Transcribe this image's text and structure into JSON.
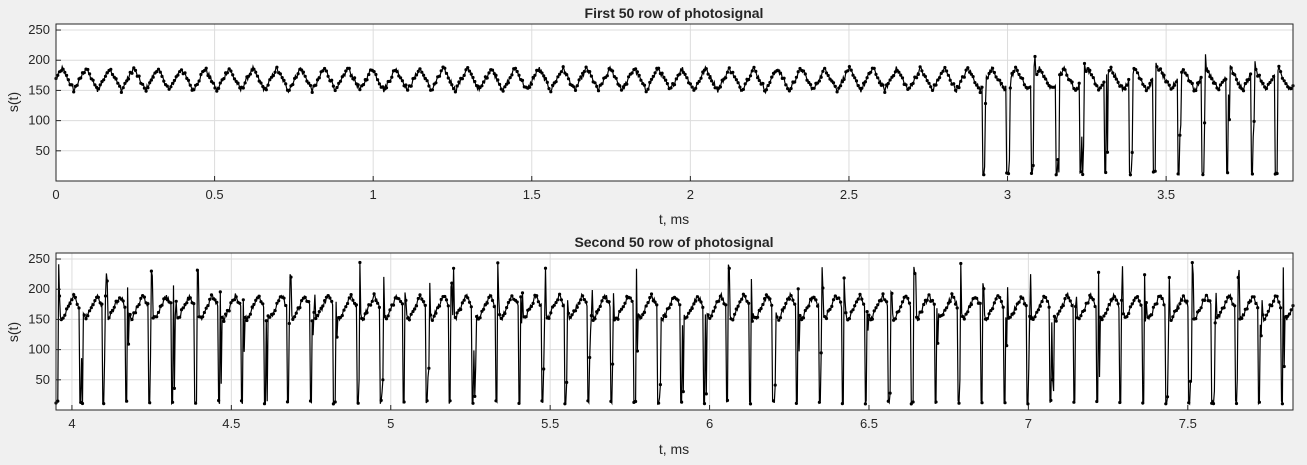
{
  "figure": {
    "background": "#f0f0f0",
    "axes_background": "#ffffff",
    "trace_color": "#000000",
    "grid_color": "#dcdcdc"
  },
  "chart_data": [
    {
      "type": "line",
      "title": "First 50 row of photosignal",
      "xlabel": "t, ms",
      "ylabel": "s(t)",
      "xlim": [
        0,
        3.9
      ],
      "ylim": [
        0,
        260
      ],
      "xticks": [
        "0",
        "0.5",
        "1",
        "1.5",
        "2",
        "2.5",
        "3",
        "3.5"
      ],
      "yticks": [
        "50",
        "100",
        "150",
        "200",
        "250"
      ],
      "grid": true,
      "marker": "dot",
      "series": [
        {
          "baseline_mean": 168,
          "oscillation_min": 150,
          "oscillation_max": 187,
          "cycles_per_ms": 13.3,
          "dropouts_from_ms": 2.92,
          "dropout_min": 10,
          "dropout_period_ms": 0.077,
          "peak_max": 210
        }
      ]
    },
    {
      "type": "line",
      "title": "Second 50 row of photosignal",
      "xlabel": "t, ms",
      "ylabel": "s(t)",
      "xlim": [
        3.95,
        7.83
      ],
      "ylim": [
        0,
        260
      ],
      "xticks": [
        "4",
        "4.5",
        "5",
        "5.5",
        "6",
        "6.5",
        "7",
        "7.5"
      ],
      "yticks": [
        "50",
        "100",
        "150",
        "200",
        "250"
      ],
      "grid": true,
      "marker": "dot",
      "series": [
        {
          "baseline_mean": 168,
          "oscillation_min": 150,
          "oscillation_max": 190,
          "dropout_min": 10,
          "dropout_period_ms": 0.0725,
          "peak_max": 245
        }
      ]
    }
  ]
}
